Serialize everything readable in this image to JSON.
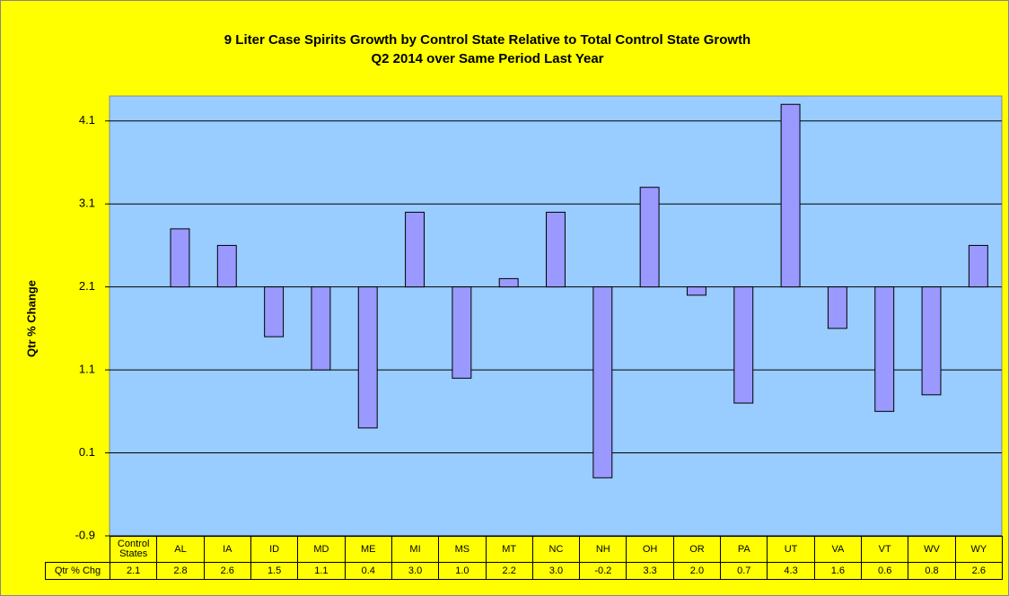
{
  "chart_data": {
    "type": "bar",
    "title": "9 Liter Case Spirits Growth by Control State Relative to Total Control State Growth",
    "subtitle": "Q2 2014 over Same Period Last Year",
    "y_label": "Qtr % Change",
    "categories": [
      "Control States",
      "AL",
      "IA",
      "ID",
      "MD",
      "ME",
      "MI",
      "MS",
      "MT",
      "NC",
      "NH",
      "OH",
      "OR",
      "PA",
      "UT",
      "VA",
      "VT",
      "WV",
      "WY"
    ],
    "series": [
      {
        "name": "Qtr % Chg",
        "color": "#9999ff",
        "values": [
          2.1,
          2.8,
          2.6,
          1.5,
          1.1,
          0.4,
          3.0,
          1.0,
          2.2,
          3.0,
          -0.2,
          3.3,
          2.0,
          0.7,
          4.3,
          1.6,
          0.6,
          0.8,
          2.6
        ],
        "value_labels": [
          "2.1",
          "2.8",
          "2.6",
          "1.5",
          "1.1",
          "0.4",
          "3.0",
          "1.0",
          "2.2",
          "3.0",
          "-0.2",
          "3.3",
          "2.0",
          "0.7",
          "4.3",
          "1.6",
          "0.6",
          "0.8",
          "2.6"
        ]
      }
    ],
    "ylim": [
      -0.9,
      4.4
    ],
    "yticks": [
      -0.9,
      0.1,
      1.1,
      2.1,
      3.1,
      4.1
    ],
    "grid": true
  }
}
